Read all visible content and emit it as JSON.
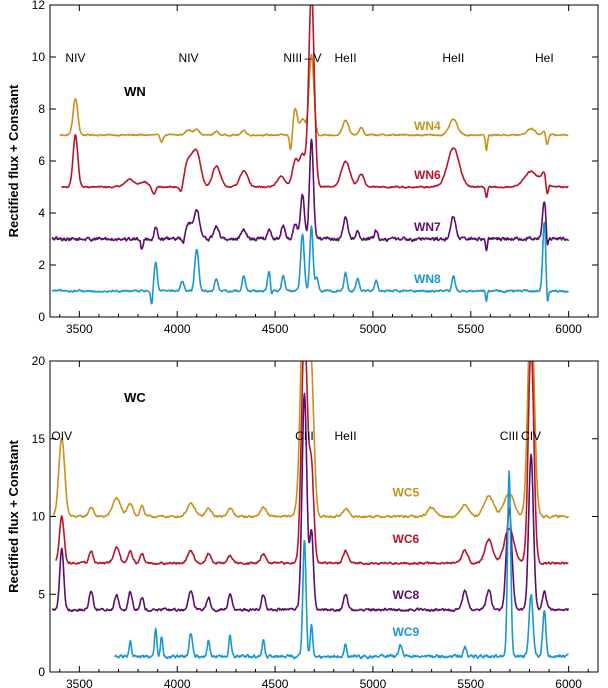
{
  "chart_data": [
    {
      "type": "line",
      "panel_label": "WN",
      "ylabel": "Rectified flux + Constant",
      "xlim": [
        3350,
        6150
      ],
      "ylim": [
        0,
        12
      ],
      "xticks": [
        3500,
        4000,
        4500,
        5000,
        5500,
        6000
      ],
      "yticks": [
        0,
        2,
        4,
        6,
        8,
        10,
        12
      ],
      "line_ids": [
        {
          "label": "NIV",
          "x": 3480
        },
        {
          "label": "NIV",
          "x": 4058
        },
        {
          "label": "NIII – V",
          "x": 4640
        },
        {
          "label": "HeII",
          "x": 4860
        },
        {
          "label": "HeII",
          "x": 5411
        },
        {
          "label": "HeI",
          "x": 5876
        }
      ],
      "series": [
        {
          "name": "WN4",
          "color": "#c8911a",
          "baseline": 7.0,
          "noise": 0.05,
          "start": 3400,
          "lines": [
            [
              3480,
              1.4,
              12
            ],
            [
              4058,
              0.2,
              15
            ],
            [
              4100,
              0.25,
              12
            ],
            [
              4200,
              0.15,
              10
            ],
            [
              4340,
              0.2,
              10
            ],
            [
              4603,
              1.0,
              10
            ],
            [
              4640,
              0.6,
              15
            ],
            [
              4686,
              3.1,
              12
            ],
            [
              4860,
              0.55,
              15
            ],
            [
              4940,
              0.3,
              10
            ],
            [
              5411,
              0.6,
              20
            ],
            [
              5808,
              0.25,
              20
            ],
            [
              5876,
              0.15,
              10
            ]
          ],
          "dips": [
            [
              3920,
              0.25,
              8
            ],
            [
              4580,
              0.6,
              6
            ],
            [
              5580,
              0.6,
              5
            ],
            [
              5890,
              0.4,
              6
            ]
          ],
          "label_x": 5210,
          "label_y": 7.2
        },
        {
          "name": "WN6",
          "color": "#b8142a",
          "baseline": 5.0,
          "noise": 0.05,
          "start": 3410,
          "lines": [
            [
              3480,
              2.0,
              12
            ],
            [
              3755,
              0.3,
              25
            ],
            [
              3830,
              0.2,
              20
            ],
            [
              4058,
              1.0,
              20
            ],
            [
              4100,
              1.3,
              20
            ],
            [
              4200,
              0.8,
              20
            ],
            [
              4340,
              0.6,
              20
            ],
            [
              4530,
              0.4,
              20
            ],
            [
              4603,
              1.0,
              15
            ],
            [
              4640,
              1.2,
              15
            ],
            [
              4686,
              7.5,
              14
            ],
            [
              4860,
              1.0,
              22
            ],
            [
              4940,
              0.5,
              15
            ],
            [
              5411,
              1.5,
              30
            ],
            [
              5808,
              0.6,
              35
            ],
            [
              5876,
              0.5,
              15
            ]
          ],
          "dips": [
            [
              3880,
              0.3,
              8
            ],
            [
              4020,
              0.3,
              8
            ],
            [
              5580,
              0.4,
              5
            ],
            [
              5890,
              0.6,
              6
            ]
          ],
          "label_x": 5210,
          "label_y": 5.3
        },
        {
          "name": "WN7",
          "color": "#5b0e6b",
          "baseline": 3.0,
          "noise": 0.12,
          "start": 3360,
          "lines": [
            [
              3890,
              0.5,
              8
            ],
            [
              4058,
              0.6,
              15
            ],
            [
              4100,
              1.1,
              15
            ],
            [
              4200,
              0.5,
              12
            ],
            [
              4340,
              0.4,
              12
            ],
            [
              4470,
              0.4,
              8
            ],
            [
              4542,
              0.5,
              10
            ],
            [
              4603,
              0.6,
              10
            ],
            [
              4640,
              1.7,
              10
            ],
            [
              4686,
              3.8,
              10
            ],
            [
              4860,
              0.8,
              12
            ],
            [
              4922,
              0.3,
              8
            ],
            [
              5016,
              0.3,
              8
            ],
            [
              5411,
              0.9,
              12
            ],
            [
              5876,
              1.4,
              10
            ]
          ],
          "dips": [
            [
              3820,
              0.4,
              5
            ],
            [
              4030,
              0.3,
              5
            ],
            [
              5580,
              0.5,
              4
            ],
            [
              5890,
              0.6,
              5
            ]
          ],
          "label_x": 5210,
          "label_y": 3.3
        },
        {
          "name": "WN8",
          "color": "#1a97d0",
          "baseline": 1.0,
          "noise": 0.07,
          "start": 3360,
          "lines": [
            [
              3890,
              1.1,
              8
            ],
            [
              4026,
              0.4,
              8
            ],
            [
              4100,
              1.6,
              10
            ],
            [
              4200,
              0.5,
              8
            ],
            [
              4340,
              0.6,
              8
            ],
            [
              4470,
              0.8,
              8
            ],
            [
              4542,
              0.6,
              8
            ],
            [
              4640,
              2.2,
              9
            ],
            [
              4686,
              2.5,
              8
            ],
            [
              4713,
              0.5,
              8
            ],
            [
              4860,
              0.7,
              8
            ],
            [
              4922,
              0.5,
              8
            ],
            [
              5016,
              0.4,
              8
            ],
            [
              5411,
              0.6,
              8
            ],
            [
              5876,
              2.7,
              8
            ]
          ],
          "dips": [
            [
              3870,
              0.5,
              5
            ],
            [
              4480,
              0.4,
              5
            ],
            [
              5580,
              0.4,
              4
            ],
            [
              5890,
              0.8,
              5
            ]
          ],
          "label_x": 5210,
          "label_y": 1.3
        }
      ]
    },
    {
      "type": "line",
      "panel_label": "WC",
      "ylabel": "Rectified flux + Constant",
      "xlim": [
        3350,
        6150
      ],
      "ylim": [
        0,
        20
      ],
      "xticks": [
        3500,
        4000,
        4500,
        5000,
        5500,
        6000
      ],
      "yticks": [
        0,
        5,
        10,
        15,
        20
      ],
      "line_ids": [
        {
          "label": "OIV",
          "x": 3410
        },
        {
          "label": "CIII",
          "x": 4650
        },
        {
          "label": "HeII",
          "x": 4860
        },
        {
          "label": "CIII",
          "x": 5696
        },
        {
          "label": "CIV",
          "x": 5808
        }
      ],
      "series": [
        {
          "name": "WC5",
          "color": "#c8911a",
          "baseline": 10.0,
          "noise": 0.12,
          "start": 3360,
          "lines": [
            [
              3410,
              5.0,
              15
            ],
            [
              3560,
              0.6,
              12
            ],
            [
              3690,
              1.2,
              20
            ],
            [
              3760,
              0.8,
              15
            ],
            [
              3820,
              0.7,
              10
            ],
            [
              4070,
              0.8,
              20
            ],
            [
              4160,
              0.5,
              15
            ],
            [
              4270,
              0.5,
              15
            ],
            [
              4440,
              0.6,
              15
            ],
            [
              4650,
              16.0,
              18
            ],
            [
              4686,
              8.0,
              14
            ],
            [
              4860,
              0.5,
              15
            ],
            [
              5300,
              0.6,
              20
            ],
            [
              5470,
              0.8,
              20
            ],
            [
              5592,
              1.3,
              25
            ],
            [
              5696,
              1.5,
              25
            ],
            [
              5808,
              14.0,
              16
            ]
          ],
          "dips": [],
          "label_x": 5100,
          "label_y": 11.3
        },
        {
          "name": "WC6",
          "color": "#b8142a",
          "baseline": 7.0,
          "noise": 0.12,
          "start": 3380,
          "lines": [
            [
              3410,
              3.0,
              12
            ],
            [
              3560,
              0.8,
              10
            ],
            [
              3690,
              1.0,
              15
            ],
            [
              3760,
              0.8,
              12
            ],
            [
              3820,
              0.6,
              10
            ],
            [
              4070,
              0.8,
              15
            ],
            [
              4160,
              0.6,
              12
            ],
            [
              4270,
              0.5,
              12
            ],
            [
              4440,
              0.6,
              12
            ],
            [
              4650,
              15.0,
              15
            ],
            [
              4686,
              6.0,
              12
            ],
            [
              4860,
              0.8,
              12
            ],
            [
              5470,
              0.8,
              15
            ],
            [
              5592,
              1.5,
              20
            ],
            [
              5696,
              2.2,
              25
            ],
            [
              5808,
              14.0,
              14
            ]
          ],
          "dips": [],
          "label_x": 5100,
          "label_y": 8.3
        },
        {
          "name": "WC8",
          "color": "#5b0e6b",
          "baseline": 4.0,
          "noise": 0.15,
          "start": 3360,
          "lines": [
            [
              3410,
              4.0,
              10
            ],
            [
              3560,
              1.2,
              10
            ],
            [
              3690,
              1.0,
              10
            ],
            [
              3760,
              1.2,
              10
            ],
            [
              3820,
              0.8,
              8
            ],
            [
              4070,
              1.2,
              12
            ],
            [
              4160,
              0.8,
              10
            ],
            [
              4270,
              1.0,
              10
            ],
            [
              4440,
              1.0,
              10
            ],
            [
              4650,
              14.0,
              12
            ],
            [
              4686,
              5.0,
              10
            ],
            [
              4860,
              1.0,
              10
            ],
            [
              5470,
              1.2,
              12
            ],
            [
              5592,
              1.3,
              12
            ],
            [
              5696,
              6.5,
              14
            ],
            [
              5808,
              10.0,
              12
            ],
            [
              5876,
              1.2,
              10
            ]
          ],
          "dips": [],
          "label_x": 5100,
          "label_y": 4.7
        },
        {
          "name": "WC9",
          "color": "#1a97d0",
          "baseline": 1.0,
          "noise": 0.18,
          "start": 3680,
          "lines": [
            [
              3760,
              1.0,
              6
            ],
            [
              3890,
              1.8,
              6
            ],
            [
              3920,
              1.3,
              6
            ],
            [
              4070,
              1.5,
              8
            ],
            [
              4160,
              1.0,
              6
            ],
            [
              4270,
              1.3,
              6
            ],
            [
              4440,
              1.0,
              6
            ],
            [
              4650,
              7.5,
              8
            ],
            [
              4686,
              2.0,
              6
            ],
            [
              4860,
              0.8,
              6
            ],
            [
              5140,
              0.8,
              8
            ],
            [
              5470,
              0.6,
              8
            ],
            [
              5696,
              12.0,
              8
            ],
            [
              5808,
              4.0,
              10
            ],
            [
              5876,
              3.0,
              8
            ]
          ],
          "dips": [],
          "label_x": 5100,
          "label_y": 2.3
        }
      ]
    }
  ]
}
